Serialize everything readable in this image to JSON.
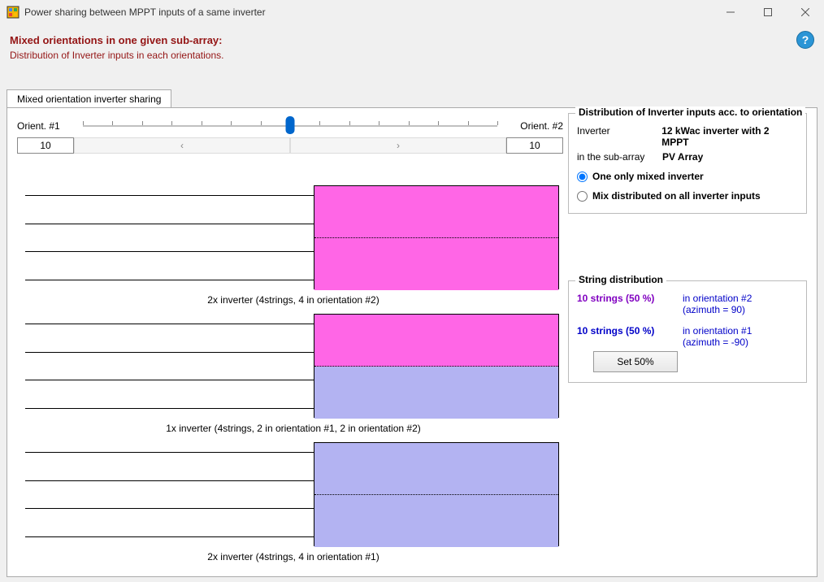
{
  "window": {
    "title": "Power sharing between MPPT inputs of a same inverter"
  },
  "header": {
    "title": "Mixed orientations in one given sub-array:",
    "subtitle": "Distribution of Inverter inputs in each orientations."
  },
  "tab": {
    "label": "Mixed orientation inverter sharing"
  },
  "slider": {
    "left_label": "Orient. #1",
    "right_label": "Orient. #2",
    "left_value": "10",
    "right_value": "10",
    "position_pct": 50,
    "ticks": 14
  },
  "distribution_panel": {
    "title": "Distribution of Inverter inputs acc. to orientation",
    "inverter_label": "Inverter",
    "inverter_value": "12 kWac inverter with 2 MPPT",
    "subarray_label": "in the sub-array",
    "subarray_value": "PV Array",
    "radio1": "One only mixed inverter",
    "radio2": "Mix distributed on all inverter inputs",
    "radio_selected": 1
  },
  "string_panel": {
    "title": "String distribution",
    "row1_count": "10 strings (50 %)",
    "row1_desc_line1": "in orientation #2",
    "row1_desc_line2": "(azimuth = 90)",
    "row2_count": "10 strings (50 %)",
    "row2_desc_line1": "in orientation #1",
    "row2_desc_line2": "(azimuth = -90)",
    "button": "Set 50%"
  },
  "diagram": {
    "colors": {
      "orient2": "#ff66e6",
      "orient1": "#b3b3f2"
    },
    "blocks": [
      {
        "top_color": "orient2",
        "bottom_color": "orient2",
        "strings": 4,
        "caption": "2x inverter (4strings, 4 in orientation #2)"
      },
      {
        "top_color": "orient2",
        "bottom_color": "orient1",
        "strings": 4,
        "caption": "1x inverter (4strings, 2 in orientation #1, 2 in orientation #2)"
      },
      {
        "top_color": "orient1",
        "bottom_color": "orient1",
        "strings": 4,
        "caption": "2x inverter (4strings, 4 in orientation #1)"
      }
    ]
  }
}
